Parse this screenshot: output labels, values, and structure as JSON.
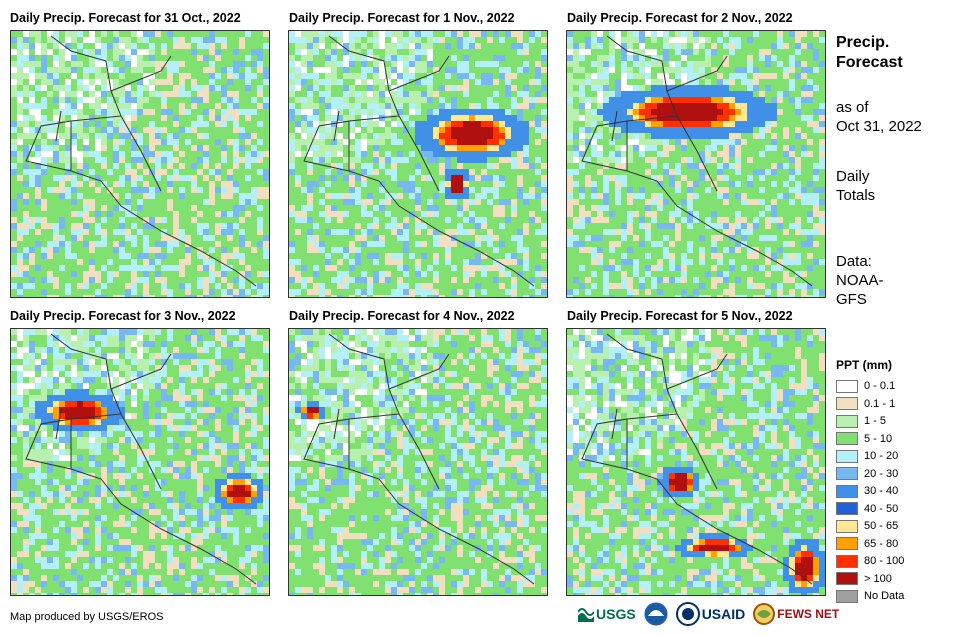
{
  "panels": [
    {
      "title": "Daily Precip. Forecast for 31 Oct., 2022"
    },
    {
      "title": "Daily Precip. Forecast for 1 Nov., 2022"
    },
    {
      "title": "Daily Precip. Forecast for 2 Nov., 2022"
    },
    {
      "title": "Daily Precip. Forecast for 3 Nov., 2022"
    },
    {
      "title": "Daily Precip. Forecast for 4 Nov., 2022"
    },
    {
      "title": "Daily Precip. Forecast for 5 Nov., 2022"
    }
  ],
  "side": {
    "title_line1": "Precip.",
    "title_line2": "Forecast",
    "asof_line1": "as of",
    "asof_line2": "Oct 31, 2022",
    "daily_line1": "Daily",
    "daily_line2": "Totals",
    "data_line1": "Data:",
    "data_line2": "NOAA-",
    "data_line3": "GFS"
  },
  "legend": {
    "title": "PPT (mm)",
    "items": [
      {
        "label": "0 - 0.1",
        "color": "#ffffff"
      },
      {
        "label": "0.1 - 1",
        "color": "#f2dfc0"
      },
      {
        "label": "1 - 5",
        "color": "#b8f0b0"
      },
      {
        "label": "5 - 10",
        "color": "#80e070"
      },
      {
        "label": "10 - 20",
        "color": "#b4f0f8"
      },
      {
        "label": "20 - 30",
        "color": "#78b8f0"
      },
      {
        "label": "30 - 40",
        "color": "#4090e8"
      },
      {
        "label": "40 - 50",
        "color": "#2060d8"
      },
      {
        "label": "50 - 65",
        "color": "#ffe890"
      },
      {
        "label": "65 - 80",
        "color": "#ffa000"
      },
      {
        "label": "80 - 100",
        "color": "#ff3000"
      },
      {
        "label": "> 100",
        "color": "#b01010"
      },
      {
        "label": "No Data",
        "color": "#a0a0a0"
      }
    ]
  },
  "footer": {
    "credit": "Map produced by USGS/EROS",
    "logos": {
      "usgs": "USGS",
      "noaa": "NOAA",
      "usaid": "USAID",
      "fewsnet": "FEWS NET"
    }
  }
}
